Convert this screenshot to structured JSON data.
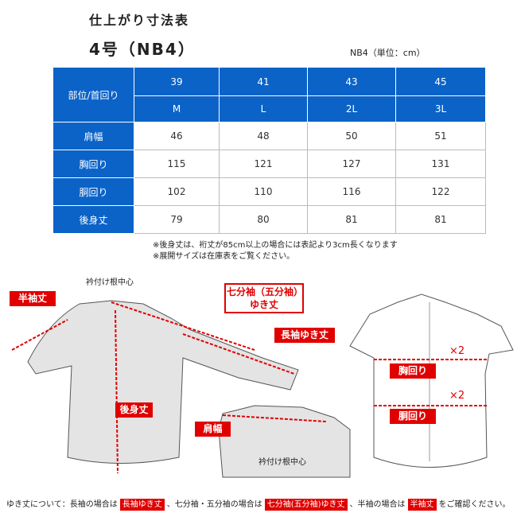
{
  "title": "仕上がり寸法表",
  "model": "4号（NB4）",
  "unit": "NB4（単位：cm）",
  "table": {
    "corner": "部位/首回り",
    "neck": [
      "39",
      "41",
      "43",
      "45"
    ],
    "sizes": [
      "M",
      "L",
      "2L",
      "3L"
    ],
    "rows": [
      {
        "label": "肩幅",
        "values": [
          "46",
          "48",
          "50",
          "51"
        ]
      },
      {
        "label": "胸回り",
        "values": [
          "115",
          "121",
          "127",
          "131"
        ]
      },
      {
        "label": "胴回り",
        "values": [
          "102",
          "110",
          "116",
          "122"
        ]
      },
      {
        "label": "後身丈",
        "values": [
          "79",
          "80",
          "81",
          "81"
        ]
      }
    ]
  },
  "notes": [
    "※後身丈は、裄丈が85cm以上の場合には表記より3cm長くなります",
    "※展開サイズは在庫表をご覧ください。"
  ],
  "diagram": {
    "collar_center_1": "衿付け根中心",
    "short_sleeve": "半袖丈",
    "three_quarter_l1": "七分袖（五分袖）",
    "three_quarter_l2": "ゆき丈",
    "long_sleeve": "長袖ゆき丈",
    "back_length": "後身丈",
    "shoulder": "肩幅",
    "collar_center_2": "衿付け根中心",
    "chest": "胸回り",
    "waist": "胴回り",
    "times2_a": "×2",
    "times2_b": "×2"
  },
  "footer": {
    "t1": "ゆき丈について：長袖の場合は",
    "b1": "長袖ゆき丈",
    "t2": "、七分袖・五分袖の場合は",
    "b2": "七分袖(五分袖)ゆき丈",
    "t3": "、半袖の場合は",
    "b3": "半袖丈",
    "t4": "をご確認ください。"
  },
  "colors": {
    "header": "#0b63c8",
    "accent": "#e10000"
  }
}
